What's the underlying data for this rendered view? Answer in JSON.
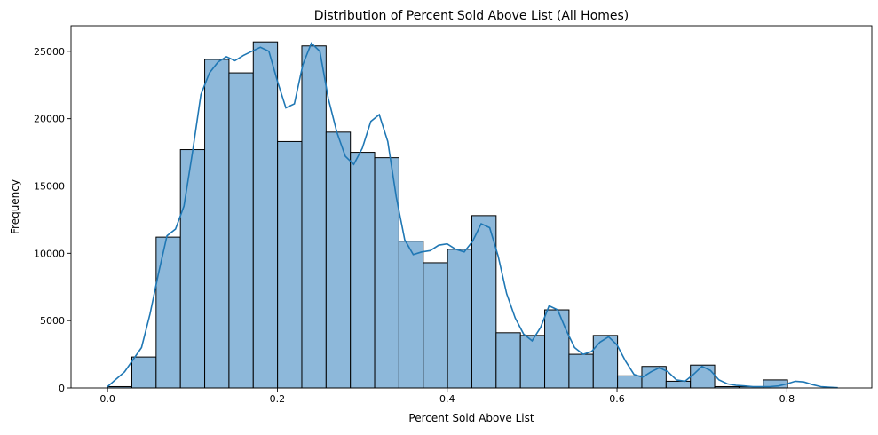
{
  "chart_data": {
    "type": "bar",
    "subtype": "histogram-with-kde",
    "title": "Distribution of Percent Sold Above List (All Homes)",
    "xlabel": "Percent Sold Above List",
    "ylabel": "Frequency",
    "xlim": [
      -0.043,
      0.9
    ],
    "ylim": [
      0,
      26900
    ],
    "x_ticks": [
      0.0,
      0.2,
      0.4,
      0.6,
      0.8
    ],
    "x_tick_labels": [
      "0.0",
      "0.2",
      "0.4",
      "0.6",
      "0.8"
    ],
    "y_ticks": [
      0,
      5000,
      10000,
      15000,
      20000,
      25000
    ],
    "y_tick_labels": [
      "0",
      "5000",
      "10000",
      "15000",
      "20000",
      "25000"
    ],
    "bin_start": 0.0,
    "bin_width": 0.0286,
    "bin_counts": [
      100,
      2300,
      11200,
      17700,
      24400,
      23400,
      25700,
      18300,
      25400,
      19000,
      17500,
      17100,
      10900,
      9300,
      10300,
      12800,
      4100,
      3900,
      5800,
      2500,
      3900,
      900,
      1600,
      500,
      1700,
      100,
      100,
      600,
      0,
      0
    ],
    "kde": {
      "x": [
        0.0,
        0.02,
        0.04,
        0.05,
        0.06,
        0.07,
        0.08,
        0.09,
        0.1,
        0.11,
        0.12,
        0.13,
        0.14,
        0.15,
        0.16,
        0.17,
        0.18,
        0.19,
        0.2,
        0.21,
        0.22,
        0.23,
        0.24,
        0.25,
        0.26,
        0.27,
        0.28,
        0.29,
        0.3,
        0.31,
        0.32,
        0.33,
        0.34,
        0.35,
        0.36,
        0.37,
        0.38,
        0.39,
        0.4,
        0.41,
        0.42,
        0.43,
        0.44,
        0.45,
        0.46,
        0.47,
        0.48,
        0.49,
        0.5,
        0.51,
        0.52,
        0.53,
        0.54,
        0.55,
        0.56,
        0.57,
        0.58,
        0.59,
        0.6,
        0.61,
        0.62,
        0.63,
        0.64,
        0.65,
        0.66,
        0.67,
        0.68,
        0.69,
        0.7,
        0.71,
        0.72,
        0.73,
        0.74,
        0.75,
        0.76,
        0.77,
        0.78,
        0.79,
        0.8,
        0.81,
        0.82,
        0.83,
        0.84,
        0.85,
        0.86
      ],
      "y": [
        100,
        1200,
        3000,
        5500,
        8500,
        11300,
        11800,
        13500,
        17500,
        21800,
        23400,
        24200,
        24600,
        24300,
        24700,
        25000,
        25300,
        25000,
        22800,
        20800,
        21100,
        24000,
        25600,
        25000,
        21500,
        19000,
        17200,
        16600,
        17800,
        19800,
        20300,
        18300,
        14200,
        11000,
        9900,
        10100,
        10200,
        10600,
        10700,
        10300,
        10100,
        10900,
        12200,
        11900,
        9800,
        7000,
        5200,
        4000,
        3500,
        4500,
        6100,
        5800,
        4300,
        3000,
        2500,
        2700,
        3400,
        3800,
        3200,
        2000,
        1000,
        800,
        1200,
        1500,
        1200,
        600,
        500,
        1000,
        1600,
        1300,
        600,
        300,
        200,
        150,
        100,
        100,
        100,
        150,
        300,
        500,
        450,
        250,
        100,
        50,
        20
      ]
    },
    "colors": {
      "bar_fill": "#8db8da",
      "bar_edge": "#000000",
      "kde_line": "#1f77b4"
    },
    "grid": false,
    "legend": "none"
  }
}
